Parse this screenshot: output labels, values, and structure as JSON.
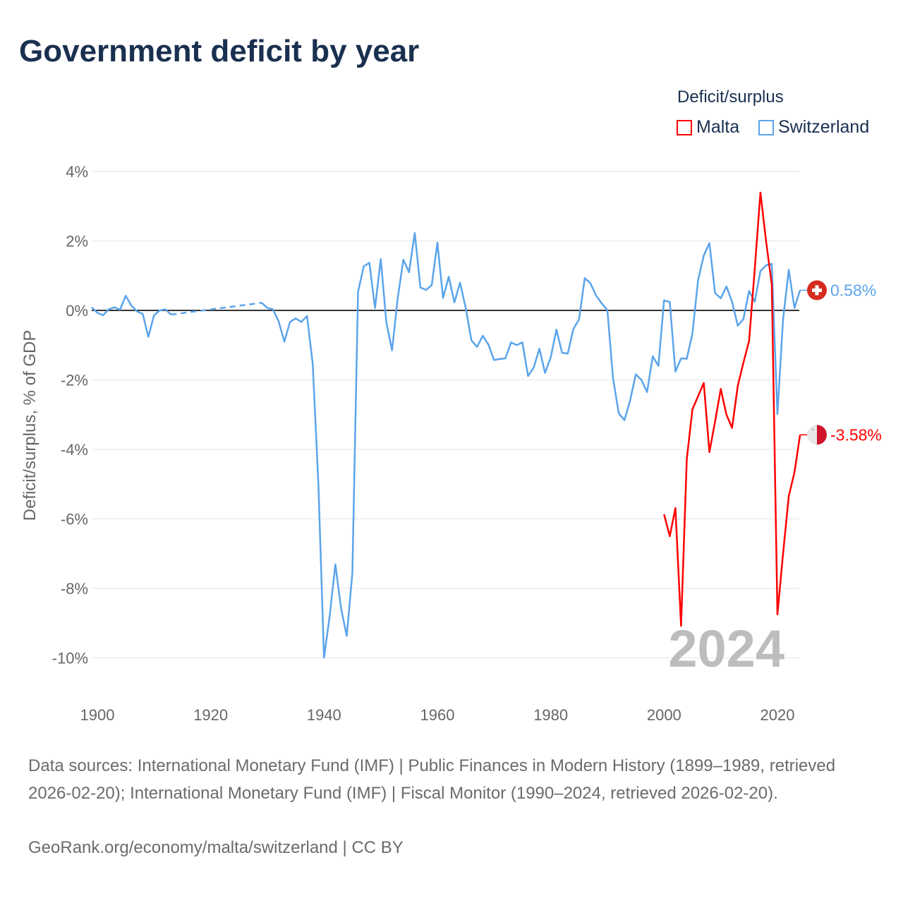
{
  "chart_data": {
    "type": "line",
    "title": "Government deficit by year",
    "ylabel": "Deficit/surplus, % of GDP",
    "xlabel": "",
    "ylim": [
      -10,
      4
    ],
    "xlim": [
      1899,
      2024
    ],
    "yticks": [
      4,
      2,
      0,
      -2,
      -4,
      -6,
      -8,
      -10
    ],
    "ytick_labels": [
      "4%",
      "2%",
      "0%",
      "-2%",
      "-4%",
      "-6%",
      "-8%",
      "-10%"
    ],
    "xticks": [
      1900,
      1920,
      1940,
      1960,
      1980,
      2000,
      2020
    ],
    "xtick_labels": [
      "1900",
      "1920",
      "1940",
      "1960",
      "1980",
      "2000",
      "2020"
    ],
    "grid": true,
    "legend": {
      "title": "Deficit/surplus",
      "placement": "top-right"
    },
    "year_label": "2024",
    "series": [
      {
        "name": "Malta",
        "color": "#ff0000",
        "start_year": 2000,
        "end_label": "-3.58%",
        "flag": "malta-flag",
        "values": [
          -5.87,
          -6.5,
          -5.69,
          -9.08,
          -4.28,
          -2.85,
          -2.47,
          -2.09,
          -4.08,
          -3.2,
          -2.26,
          -3.0,
          -3.38,
          -2.17,
          -1.5,
          -0.88,
          1.2,
          3.39,
          1.99,
          0.75,
          -8.75,
          -7.0,
          -5.34,
          -4.67,
          -3.58
        ]
      },
      {
        "name": "Switzerland",
        "color": "#5ba4ea",
        "start_year": 1899,
        "end_label": "0.58%",
        "flag": "switzerland-flag",
        "values": [
          0.09,
          -0.07,
          -0.14,
          0.03,
          0.09,
          0.02,
          0.42,
          0.14,
          -0.03,
          -0.1,
          -0.76,
          -0.14,
          0.0,
          0.03,
          -0.12,
          null,
          null,
          null,
          null,
          null,
          null,
          null,
          null,
          null,
          null,
          null,
          null,
          null,
          null,
          null,
          0.22,
          0.07,
          0.03,
          -0.32,
          -0.9,
          -0.33,
          -0.23,
          -0.33,
          -0.16,
          -1.54,
          -4.99,
          -10.0,
          -8.78,
          -7.31,
          -8.57,
          -9.37,
          -7.55,
          0.53,
          1.27,
          1.37,
          0.07,
          1.48,
          -0.35,
          -1.15,
          0.36,
          1.46,
          1.1,
          2.23,
          0.66,
          0.59,
          0.73,
          1.95,
          0.36,
          0.97,
          0.23,
          0.8,
          0.07,
          -0.86,
          -1.05,
          -0.73,
          -0.98,
          -1.43,
          -1.4,
          -1.38,
          -0.92,
          -1.0,
          -0.92,
          -1.89,
          -1.64,
          -1.1,
          -1.8,
          -1.35,
          -0.55,
          -1.22,
          -1.24,
          -0.53,
          -0.26,
          0.93,
          0.78,
          0.43,
          0.2,
          0.0,
          -1.96,
          -2.96,
          -3.16,
          -2.6,
          -1.84,
          -2.0,
          -2.35,
          -1.32,
          -1.6,
          0.29,
          0.24,
          -1.76,
          -1.38,
          -1.39,
          -0.67,
          0.87,
          1.58,
          1.94,
          0.5,
          0.35,
          0.69,
          0.25,
          -0.44,
          -0.25,
          0.56,
          0.25,
          1.13,
          1.3,
          1.34,
          -2.98,
          -0.25,
          1.17,
          0.07,
          0.58
        ]
      }
    ]
  },
  "footer": {
    "sources": "Data sources: International Monetary Fund (IMF) | Public Finances in Modern History (1899–1989, retrieved 2026-02-20); International Monetary Fund (IMF) | Fiscal Monitor (1990–2024, retrieved 2026-02-20).",
    "credit": "GeoRank.org/economy/malta/switzerland | CC BY"
  }
}
